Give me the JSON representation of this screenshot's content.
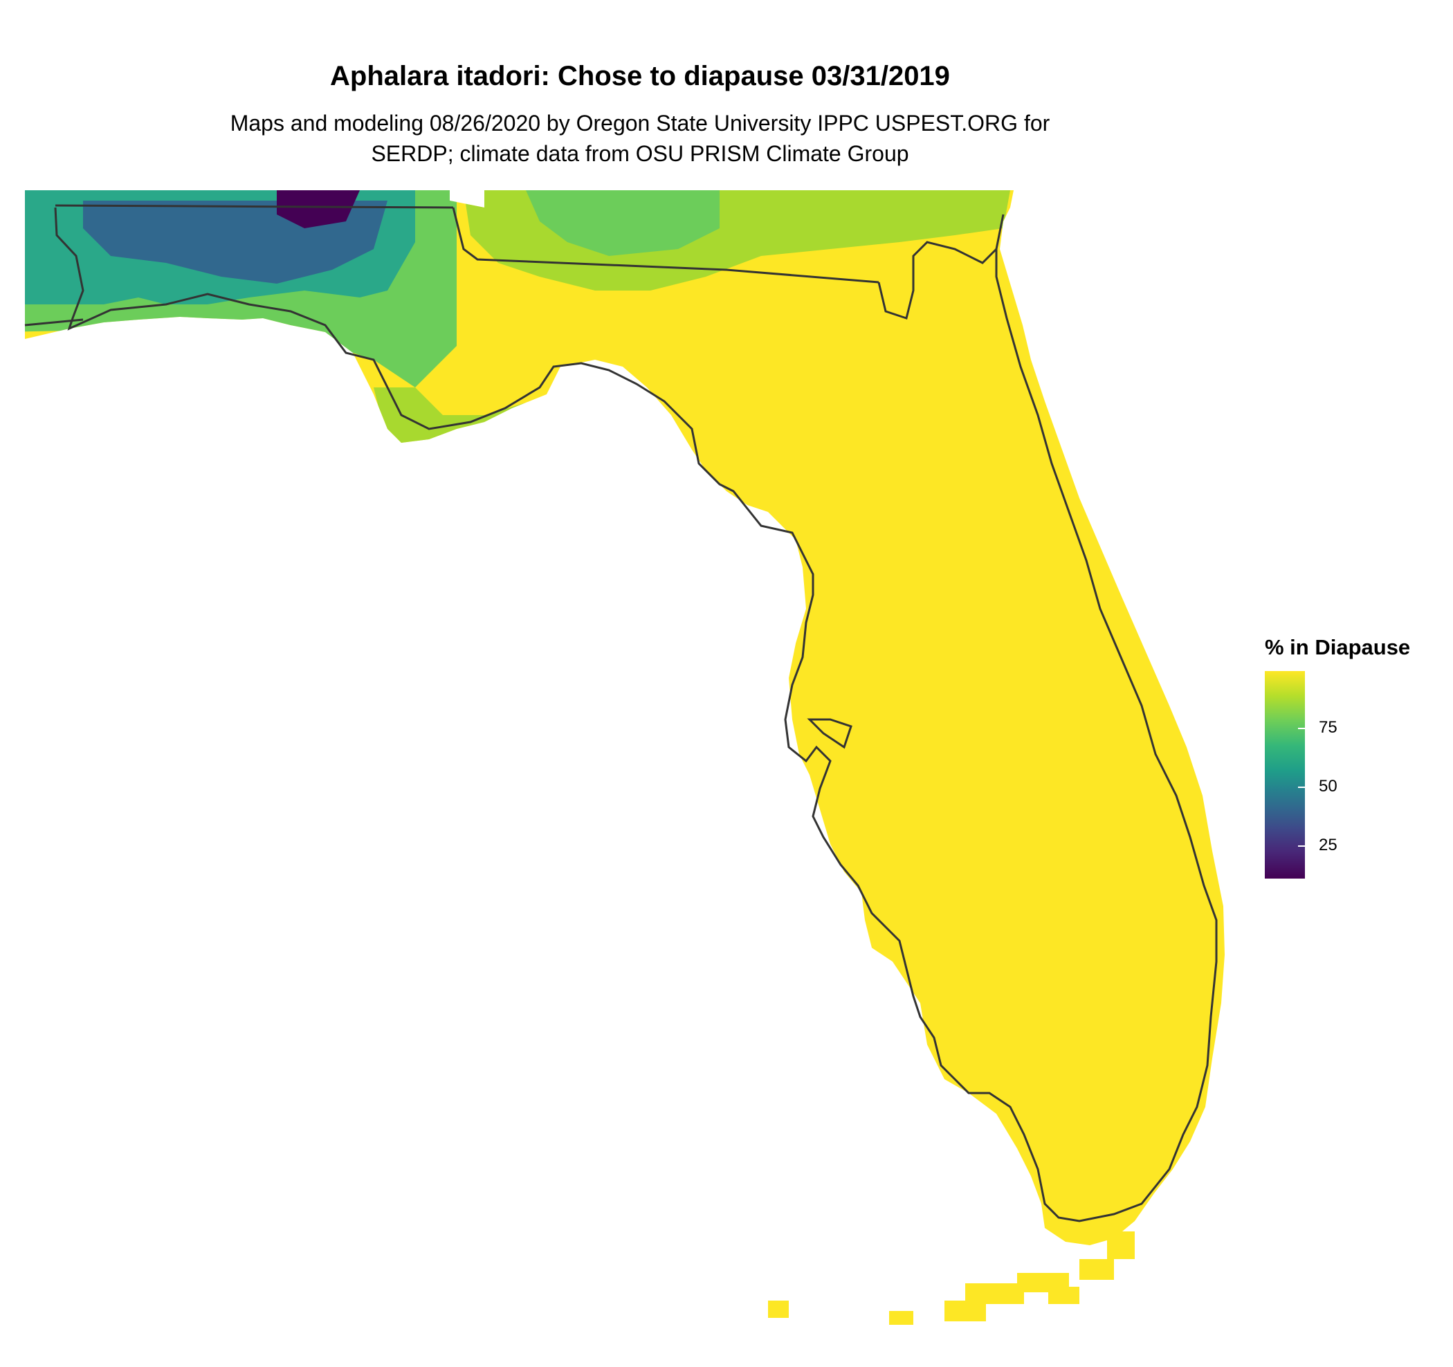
{
  "title": "Aphalara itadori: Chose to diapause 03/31/2019",
  "subtitle_line1": "Maps and modeling 08/26/2020 by Oregon State University IPPC USPEST.ORG for",
  "subtitle_line2": "SERDP; climate data from OSU PRISM Climate Group",
  "legend": {
    "title": "% in Diapause",
    "ticks": [
      {
        "value": 75,
        "label": "75"
      },
      {
        "value": 50,
        "label": "50"
      },
      {
        "value": 25,
        "label": "25"
      }
    ],
    "range": [
      10,
      100
    ],
    "colors": [
      "#fde725",
      "#b5de2b",
      "#6ece58",
      "#35b779",
      "#1f9e89",
      "#26828e",
      "#31688e",
      "#3e4989",
      "#482878",
      "#440154"
    ]
  },
  "map_regions": {
    "peninsula": "#fde725",
    "gulf_coast_band": "#a8d92f",
    "panhandle_west": "#2aa889",
    "panhandle_low": "#31688e",
    "panhandle_min": "#440154",
    "north_band": "#6ccd5a"
  }
}
